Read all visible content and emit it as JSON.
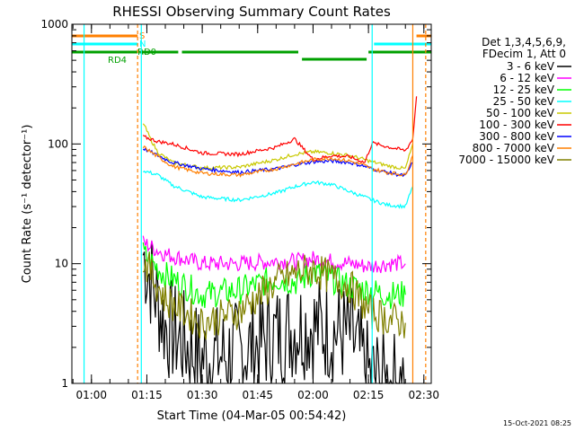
{
  "chart_data": {
    "type": "line",
    "title": "RHESSI Observing Summary Count Rates",
    "xlabel": "Start Time (04-Mar-05 00:54:42)",
    "ylabel": "Count Rate (s⁻¹ detector⁻¹)",
    "y_scale": "log",
    "ylim": [
      1,
      1000
    ],
    "xlim": [
      "00:54:42",
      "02:32:00"
    ],
    "x_ticks": [
      "01:00",
      "01:15",
      "01:30",
      "01:45",
      "02:00",
      "02:15",
      "02:30"
    ],
    "y_ticks": [
      "1",
      "10",
      "100",
      "1000"
    ],
    "legend_header": [
      "Det 1,3,4,5,6,9,",
      "FDecim 1, Att 0"
    ],
    "legend_position": "right",
    "footer_date": "15-Oct-2021 08:25",
    "flags": {
      "S": {
        "label": "S",
        "color": "#ff7f00",
        "intervals": [
          [
            "00:54:42",
            "01:12:30"
          ],
          [
            "02:28:00",
            "02:32:00"
          ]
        ]
      },
      "N": {
        "label": "N",
        "color": "#00ffff",
        "intervals": [
          [
            "00:54:42",
            "01:12:30"
          ],
          [
            "02:16:30",
            "02:32:00"
          ]
        ]
      },
      "RD0": {
        "label": "RD0",
        "color": "#00a000",
        "intervals": [
          [
            "01:13:00",
            "01:23:30"
          ],
          [
            "01:24:30",
            "01:56:00"
          ],
          [
            "01:57:00",
            "02:14:30"
          ],
          [
            "02:15:00",
            "02:32:00"
          ]
        ]
      },
      "RD4": {
        "label": "RD4",
        "color": "#00a000",
        "intervals": [
          [
            "00:54:42",
            "01:12:30"
          ]
        ]
      }
    },
    "vertical_markers": [
      {
        "time": "01:12:30",
        "color": "#ff7f00",
        "style": "dashed"
      },
      {
        "time": "01:13:30",
        "color": "#00ffff",
        "style": "solid"
      },
      {
        "time": "02:16:00",
        "color": "#00ffff",
        "style": "solid"
      },
      {
        "time": "02:27:00",
        "color": "#ff7f00",
        "style": "solid"
      },
      {
        "time": "02:30:30",
        "color": "#ff7f00",
        "style": "dashed"
      },
      {
        "time": "00:58:00",
        "color": "#00ffff",
        "style": "solid"
      }
    ],
    "series": [
      {
        "name": "3 - 6 keV",
        "color": "#000000",
        "times": [
          "01:14",
          "01:20",
          "01:30",
          "01:40",
          "01:50",
          "01:56",
          "02:00",
          "02:10",
          "02:15",
          "02:20",
          "02:25"
        ],
        "values": [
          12,
          3,
          1.6,
          1.8,
          2.5,
          3,
          3,
          2.5,
          1.2,
          1,
          1
        ]
      },
      {
        "name": "6 - 12 keV",
        "color": "#ff00ff",
        "times": [
          "01:14",
          "01:20",
          "01:30",
          "01:40",
          "01:50",
          "01:56",
          "02:00",
          "02:10",
          "02:15",
          "02:20",
          "02:25"
        ],
        "values": [
          15,
          12,
          10,
          10,
          10.5,
          10.5,
          11,
          10,
          9.5,
          10,
          10
        ]
      },
      {
        "name": "12 - 25 keV",
        "color": "#00ff00",
        "times": [
          "01:14",
          "01:20",
          "01:30",
          "01:40",
          "01:50",
          "01:56",
          "02:00",
          "02:10",
          "02:15",
          "02:20",
          "02:25"
        ],
        "values": [
          12,
          8,
          5.5,
          6,
          7.5,
          7,
          8.5,
          6.5,
          6,
          5.5,
          5.5
        ]
      },
      {
        "name": "25 - 50 keV",
        "color": "#00ffff",
        "times": [
          "01:14",
          "01:18",
          "01:22",
          "01:30",
          "01:40",
          "01:50",
          "01:55",
          "02:00",
          "02:05",
          "02:10",
          "02:14",
          "02:16",
          "02:20",
          "02:25",
          "02:27"
        ],
        "values": [
          60,
          55,
          45,
          36,
          34,
          39,
          44,
          48,
          46,
          40,
          36,
          34,
          31,
          30,
          44
        ]
      },
      {
        "name": "50 - 100 keV",
        "color": "#c8c800",
        "times": [
          "01:14",
          "01:16",
          "01:18",
          "01:22",
          "01:30",
          "01:40",
          "01:50",
          "01:55",
          "02:00",
          "02:05",
          "02:10",
          "02:14",
          "02:16",
          "02:20",
          "02:25",
          "02:27"
        ],
        "values": [
          150,
          110,
          85,
          70,
          63,
          64,
          74,
          82,
          86,
          84,
          80,
          74,
          71,
          66,
          62,
          100
        ]
      },
      {
        "name": "100 - 300 keV",
        "color": "#ff0000",
        "times": [
          "01:14",
          "01:18",
          "01:22",
          "01:30",
          "01:40",
          "01:50",
          "01:55",
          "02:00",
          "02:05",
          "02:10",
          "02:14",
          "02:16",
          "02:20",
          "02:25",
          "02:27",
          "02:28"
        ],
        "values": [
          115,
          105,
          100,
          84,
          82,
          94,
          110,
          74,
          80,
          78,
          70,
          102,
          95,
          88,
          110,
          250
        ]
      },
      {
        "name": "300 - 800 keV",
        "color": "#0000ff",
        "times": [
          "01:14",
          "01:18",
          "01:22",
          "01:30",
          "01:40",
          "01:50",
          "01:55",
          "02:00",
          "02:05",
          "02:10",
          "02:14",
          "02:16",
          "02:20",
          "02:25",
          "02:27"
        ],
        "values": [
          92,
          80,
          70,
          62,
          58,
          62,
          67,
          71,
          72,
          70,
          65,
          62,
          58,
          54,
          70
        ]
      },
      {
        "name": "800 - 7000 keV",
        "color": "#ff7f00",
        "times": [
          "01:14",
          "01:18",
          "01:22",
          "01:30",
          "01:40",
          "01:50",
          "01:55",
          "02:00",
          "02:05",
          "02:10",
          "02:14",
          "02:16",
          "02:20",
          "02:25",
          "02:27"
        ],
        "values": [
          95,
          78,
          65,
          57,
          55,
          62,
          68,
          74,
          76,
          72,
          66,
          62,
          58,
          55,
          80
        ]
      },
      {
        "name": "7000 - 15000 keV",
        "color": "#808000",
        "times": [
          "01:14",
          "01:20",
          "01:30",
          "01:40",
          "01:50",
          "01:56",
          "02:00",
          "02:10",
          "02:15",
          "02:20",
          "02:25"
        ],
        "values": [
          11,
          5,
          3.2,
          4,
          7,
          8.5,
          9,
          6.5,
          4,
          3.5,
          3.2
        ]
      }
    ]
  }
}
